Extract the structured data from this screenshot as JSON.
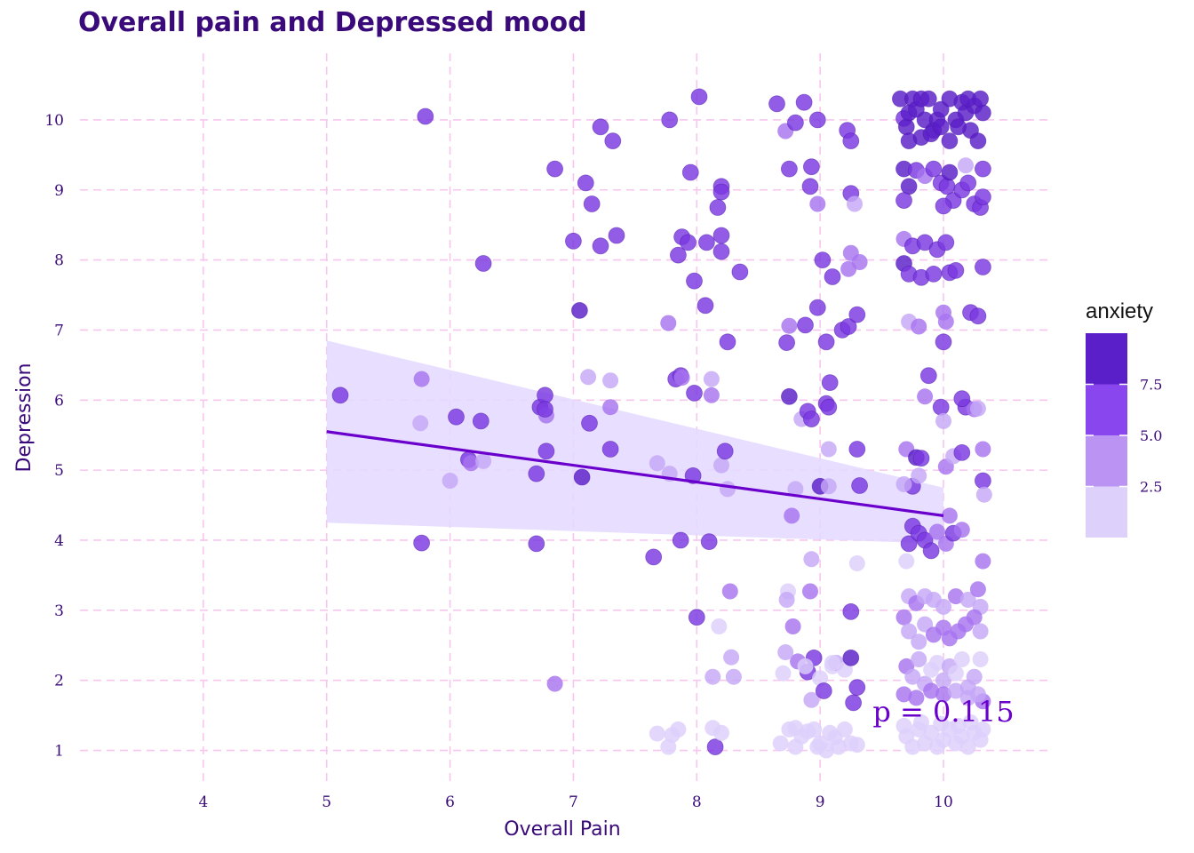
{
  "chart_data": {
    "type": "scatter",
    "title": "Overall pain and Depressed mood",
    "xlabel": "Overall Pain",
    "ylabel": "Depression",
    "xlim": [
      3.0,
      10.85
    ],
    "ylim": [
      0.55,
      10.95
    ],
    "xticks": [
      4,
      5,
      6,
      7,
      8,
      9,
      10
    ],
    "yticks": [
      1,
      2,
      3,
      4,
      5,
      6,
      7,
      8,
      9,
      10
    ],
    "grid": true,
    "annotation": "p = 0.115",
    "legend": {
      "title": "anxiety",
      "position": "right",
      "ticks": [
        "7.5",
        "5.0",
        "2.5"
      ],
      "colors": [
        "#5a1fc8",
        "#8a46ee",
        "#ba93f3",
        "#ddd0fb"
      ]
    },
    "trend": {
      "x": [
        5,
        10
      ],
      "y": [
        5.55,
        4.35
      ],
      "ci_lower": [
        4.25,
        3.95
      ],
      "ci_upper": [
        6.85,
        4.75
      ],
      "color": "#6a00cc",
      "band_color": "#e4d8ff"
    },
    "points": [
      [
        5.11,
        6.07,
        7
      ],
      [
        5.8,
        10.05,
        7
      ],
      [
        5.77,
        6.3,
        5
      ],
      [
        5.76,
        5.67,
        4
      ],
      [
        5.77,
        3.96,
        6
      ],
      [
        6.05,
        5.76,
        7
      ],
      [
        6.15,
        5.15,
        6
      ],
      [
        6.17,
        5.1,
        5
      ],
      [
        6.0,
        4.85,
        4
      ],
      [
        6.25,
        5.7,
        6
      ],
      [
        6.27,
        7.95,
        7
      ],
      [
        6.27,
        5.13,
        4
      ],
      [
        6.73,
        5.9,
        6
      ],
      [
        6.77,
        6.07,
        6
      ],
      [
        6.78,
        5.78,
        5
      ],
      [
        6.77,
        5.87,
        6
      ],
      [
        6.78,
        5.27,
        6
      ],
      [
        6.7,
        4.95,
        6
      ],
      [
        6.7,
        3.95,
        6
      ],
      [
        6.85,
        9.3,
        7
      ],
      [
        6.85,
        1.95,
        5
      ],
      [
        7.0,
        8.27,
        7
      ],
      [
        7.05,
        7.28,
        8
      ],
      [
        7.1,
        9.1,
        7
      ],
      [
        7.15,
        8.8,
        7
      ],
      [
        7.22,
        8.2,
        7
      ],
      [
        7.22,
        9.9,
        7
      ],
      [
        7.32,
        9.7,
        7
      ],
      [
        7.35,
        8.35,
        7
      ],
      [
        7.07,
        4.9,
        8
      ],
      [
        7.12,
        6.33,
        4
      ],
      [
        7.13,
        5.67,
        6
      ],
      [
        7.3,
        6.28,
        4
      ],
      [
        7.3,
        5.9,
        5
      ],
      [
        7.3,
        5.3,
        6
      ],
      [
        7.65,
        3.76,
        6
      ],
      [
        7.68,
        5.1,
        4
      ],
      [
        7.68,
        1.24,
        3
      ],
      [
        7.78,
        10.0,
        7
      ],
      [
        7.77,
        7.1,
        5
      ],
      [
        7.77,
        1.05,
        3
      ],
      [
        7.8,
        1.22,
        3
      ],
      [
        7.83,
        6.3,
        6
      ],
      [
        7.87,
        6.35,
        6
      ],
      [
        7.85,
        8.07,
        7
      ],
      [
        7.87,
        4.0,
        6
      ],
      [
        7.88,
        8.33,
        7
      ],
      [
        7.85,
        1.3,
        3
      ],
      [
        7.88,
        6.32,
        5
      ],
      [
        7.78,
        4.95,
        4
      ],
      [
        7.95,
        9.25,
        7
      ],
      [
        7.93,
        8.25,
        7
      ],
      [
        7.97,
        4.92,
        6
      ],
      [
        7.98,
        7.7,
        7
      ],
      [
        7.98,
        6.1,
        7
      ],
      [
        8.02,
        10.33,
        7
      ],
      [
        8.0,
        2.9,
        7
      ],
      [
        8.07,
        7.35,
        7
      ],
      [
        8.08,
        8.25,
        7
      ],
      [
        8.1,
        3.98,
        7
      ],
      [
        8.12,
        6.3,
        4
      ],
      [
        8.12,
        6.07,
        5
      ],
      [
        8.13,
        2.05,
        4
      ],
      [
        8.15,
        1.05,
        6
      ],
      [
        8.13,
        1.32,
        3
      ],
      [
        8.18,
        2.77,
        3
      ],
      [
        8.2,
        8.35,
        7
      ],
      [
        8.2,
        8.12,
        7
      ],
      [
        8.2,
        9.05,
        7
      ],
      [
        8.2,
        8.97,
        7
      ],
      [
        8.17,
        8.75,
        7
      ],
      [
        8.2,
        5.07,
        4
      ],
      [
        8.23,
        5.27,
        6
      ],
      [
        8.25,
        6.83,
        7
      ],
      [
        8.25,
        4.73,
        4
      ],
      [
        8.27,
        3.27,
        5
      ],
      [
        8.28,
        2.33,
        4
      ],
      [
        8.3,
        2.05,
        4
      ],
      [
        8.2,
        1.25,
        3
      ],
      [
        8.35,
        7.83,
        7
      ],
      [
        8.65,
        10.23,
        7
      ],
      [
        8.68,
        1.1,
        3
      ],
      [
        8.72,
        9.84,
        5
      ],
      [
        8.75,
        9.3,
        7
      ],
      [
        8.73,
        6.82,
        7
      ],
      [
        8.75,
        6.05,
        8
      ],
      [
        8.75,
        7.06,
        5
      ],
      [
        8.77,
        4.35,
        5
      ],
      [
        8.8,
        9.96,
        6
      ],
      [
        8.8,
        4.73,
        4
      ],
      [
        8.82,
        2.27,
        5
      ],
      [
        8.8,
        1.32,
        3
      ],
      [
        8.85,
        5.73,
        4
      ],
      [
        8.87,
        10.25,
        7
      ],
      [
        8.88,
        7.07,
        6
      ],
      [
        8.9,
        5.84,
        6
      ],
      [
        8.9,
        2.12,
        6
      ],
      [
        8.92,
        9.05,
        6
      ],
      [
        8.93,
        9.33,
        7
      ],
      [
        8.93,
        5.73,
        6
      ],
      [
        8.92,
        3.27,
        5
      ],
      [
        8.93,
        3.73,
        4
      ],
      [
        8.93,
        1.72,
        4
      ],
      [
        8.9,
        1.27,
        3
      ],
      [
        8.95,
        2.32,
        7
      ],
      [
        8.98,
        10.0,
        6
      ],
      [
        8.98,
        8.8,
        5
      ],
      [
        8.98,
        7.32,
        6
      ],
      [
        9.0,
        4.77,
        8
      ],
      [
        8.98,
        1.05,
        3
      ],
      [
        9.0,
        2.03,
        3
      ],
      [
        9.02,
        8.0,
        6
      ],
      [
        9.03,
        1.85,
        7
      ],
      [
        9.05,
        6.83,
        7
      ],
      [
        9.05,
        5.95,
        7
      ],
      [
        9.07,
        5.9,
        7
      ],
      [
        9.07,
        5.3,
        4
      ],
      [
        9.07,
        4.77,
        4
      ],
      [
        9.08,
        6.25,
        6
      ],
      [
        9.1,
        7.76,
        7
      ],
      [
        9.1,
        2.2,
        3
      ],
      [
        9.12,
        1.18,
        3
      ],
      [
        9.13,
        2.25,
        4
      ],
      [
        9.18,
        7.0,
        6
      ],
      [
        9.2,
        2.15,
        3
      ],
      [
        9.22,
        9.85,
        7
      ],
      [
        9.23,
        7.05,
        6
      ],
      [
        9.25,
        9.7,
        7
      ],
      [
        9.25,
        8.95,
        6
      ],
      [
        9.25,
        8.1,
        5
      ],
      [
        9.23,
        7.87,
        5
      ],
      [
        9.25,
        2.98,
        7
      ],
      [
        9.25,
        2.32,
        8
      ],
      [
        9.27,
        1.68,
        6
      ],
      [
        9.28,
        8.8,
        4
      ],
      [
        9.3,
        5.3,
        6
      ],
      [
        9.3,
        7.22,
        7
      ],
      [
        9.3,
        3.67,
        3
      ],
      [
        9.32,
        7.97,
        5
      ],
      [
        9.32,
        4.78,
        6
      ],
      [
        9.3,
        1.9,
        7
      ],
      [
        9.3,
        1.08,
        3
      ],
      [
        9.65,
        10.3,
        8
      ],
      [
        9.68,
        10.02,
        7
      ],
      [
        9.7,
        9.9,
        8
      ],
      [
        9.72,
        10.1,
        8
      ],
      [
        9.75,
        10.3,
        8
      ],
      [
        9.78,
        10.15,
        8
      ],
      [
        9.82,
        10.3,
        8
      ],
      [
        9.85,
        10.0,
        8
      ],
      [
        9.88,
        10.3,
        8
      ],
      [
        9.92,
        9.85,
        8
      ],
      [
        9.95,
        10.0,
        8
      ],
      [
        9.98,
        10.15,
        8
      ],
      [
        9.72,
        9.7,
        8
      ],
      [
        9.82,
        9.75,
        8
      ],
      [
        9.9,
        9.8,
        8
      ],
      [
        9.98,
        9.9,
        8
      ],
      [
        10.05,
        10.3,
        8
      ],
      [
        10.1,
        10.0,
        8
      ],
      [
        10.15,
        10.25,
        8
      ],
      [
        10.18,
        10.1,
        8
      ],
      [
        10.22,
        9.85,
        8
      ],
      [
        10.25,
        10.2,
        8
      ],
      [
        10.28,
        9.7,
        8
      ],
      [
        10.32,
        10.1,
        8
      ],
      [
        10.05,
        9.7,
        8
      ],
      [
        10.12,
        9.9,
        8
      ],
      [
        10.2,
        10.3,
        8
      ],
      [
        10.3,
        10.3,
        8
      ],
      [
        9.68,
        9.3,
        8
      ],
      [
        9.72,
        9.05,
        8
      ],
      [
        9.78,
        9.28,
        7
      ],
      [
        9.85,
        9.2,
        5
      ],
      [
        9.92,
        9.3,
        7
      ],
      [
        9.98,
        9.1,
        7
      ],
      [
        10.03,
        9.05,
        7
      ],
      [
        10.05,
        9.25,
        8
      ],
      [
        10.08,
        8.85,
        7
      ],
      [
        10.15,
        9.0,
        7
      ],
      [
        10.2,
        9.1,
        7
      ],
      [
        10.25,
        8.8,
        7
      ],
      [
        10.3,
        8.75,
        7
      ],
      [
        10.32,
        8.9,
        7
      ],
      [
        10.32,
        9.3,
        7
      ],
      [
        10.18,
        9.35,
        4
      ],
      [
        9.68,
        8.85,
        7
      ],
      [
        10.0,
        8.77,
        7
      ],
      [
        9.68,
        8.3,
        5
      ],
      [
        9.75,
        8.2,
        6
      ],
      [
        9.85,
        8.25,
        7
      ],
      [
        9.95,
        8.15,
        7
      ],
      [
        10.02,
        8.25,
        7
      ],
      [
        9.68,
        7.95,
        8
      ],
      [
        9.72,
        7.8,
        6
      ],
      [
        9.82,
        7.75,
        6
      ],
      [
        9.92,
        7.8,
        6
      ],
      [
        10.05,
        7.82,
        7
      ],
      [
        10.1,
        7.85,
        7
      ],
      [
        10.32,
        7.9,
        6
      ],
      [
        10.0,
        7.25,
        5
      ],
      [
        10.02,
        7.12,
        5
      ],
      [
        9.72,
        7.12,
        4
      ],
      [
        9.8,
        7.05,
        5
      ],
      [
        10.22,
        7.25,
        7
      ],
      [
        10.28,
        7.2,
        6
      ],
      [
        10.0,
        6.83,
        6
      ],
      [
        9.7,
        5.3,
        5
      ],
      [
        9.78,
        5.18,
        8
      ],
      [
        9.75,
        4.77,
        6
      ],
      [
        9.68,
        4.8,
        4
      ],
      [
        9.8,
        4.92,
        4
      ],
      [
        9.82,
        5.17,
        6
      ],
      [
        9.88,
        6.35,
        6
      ],
      [
        9.85,
        6.05,
        5
      ],
      [
        9.98,
        5.9,
        6
      ],
      [
        10.0,
        5.7,
        4
      ],
      [
        10.02,
        5.05,
        5
      ],
      [
        10.08,
        5.2,
        4
      ],
      [
        10.15,
        5.25,
        7
      ],
      [
        10.18,
        5.9,
        7
      ],
      [
        10.15,
        6.02,
        7
      ],
      [
        10.25,
        5.87,
        5
      ],
      [
        10.28,
        5.88,
        4
      ],
      [
        10.32,
        5.3,
        5
      ],
      [
        10.32,
        4.85,
        6
      ],
      [
        10.33,
        4.65,
        4
      ],
      [
        9.72,
        3.95,
        7
      ],
      [
        9.75,
        4.2,
        6
      ],
      [
        9.8,
        4.1,
        6
      ],
      [
        9.85,
        4.0,
        6
      ],
      [
        9.9,
        3.85,
        6
      ],
      [
        9.95,
        4.12,
        5
      ],
      [
        10.02,
        3.95,
        5
      ],
      [
        10.08,
        4.1,
        7
      ],
      [
        10.15,
        4.15,
        5
      ],
      [
        10.05,
        4.35,
        5
      ],
      [
        9.7,
        3.7,
        3
      ],
      [
        9.72,
        3.2,
        4
      ],
      [
        9.78,
        3.1,
        5
      ],
      [
        9.85,
        3.2,
        4
      ],
      [
        9.92,
        3.15,
        4
      ],
      [
        10.0,
        3.05,
        4
      ],
      [
        10.1,
        3.2,
        5
      ],
      [
        10.2,
        3.15,
        4
      ],
      [
        10.28,
        3.3,
        5
      ],
      [
        10.3,
        3.05,
        4
      ],
      [
        10.32,
        3.7,
        5
      ],
      [
        9.68,
        2.9,
        5
      ],
      [
        9.72,
        2.7,
        4
      ],
      [
        9.8,
        2.55,
        4
      ],
      [
        9.85,
        2.8,
        4
      ],
      [
        9.92,
        2.65,
        5
      ],
      [
        10.0,
        2.75,
        5
      ],
      [
        10.05,
        2.6,
        5
      ],
      [
        10.12,
        2.7,
        5
      ],
      [
        10.18,
        2.8,
        5
      ],
      [
        10.25,
        2.9,
        5
      ],
      [
        10.3,
        2.7,
        4
      ],
      [
        9.7,
        2.2,
        5
      ],
      [
        9.75,
        2.05,
        4
      ],
      [
        9.8,
        2.3,
        4
      ],
      [
        9.85,
        1.95,
        4
      ],
      [
        9.9,
        2.15,
        3
      ],
      [
        9.95,
        2.25,
        3
      ],
      [
        10.0,
        2.0,
        4
      ],
      [
        10.05,
        2.2,
        4
      ],
      [
        10.1,
        2.1,
        3
      ],
      [
        10.15,
        2.3,
        3
      ],
      [
        10.2,
        1.9,
        4
      ],
      [
        10.25,
        2.05,
        4
      ],
      [
        10.3,
        2.3,
        3
      ],
      [
        10.32,
        1.7,
        5
      ],
      [
        9.68,
        1.8,
        5
      ],
      [
        9.78,
        1.75,
        5
      ],
      [
        9.9,
        1.85,
        5
      ],
      [
        10.0,
        1.8,
        5
      ],
      [
        10.1,
        1.85,
        4
      ],
      [
        10.2,
        1.75,
        4
      ],
      [
        10.28,
        1.8,
        4
      ],
      [
        9.7,
        1.2,
        3
      ],
      [
        9.75,
        1.05,
        3
      ],
      [
        9.8,
        1.3,
        3
      ],
      [
        9.85,
        1.1,
        3
      ],
      [
        9.9,
        1.25,
        3
      ],
      [
        9.95,
        1.05,
        3
      ],
      [
        10.0,
        1.15,
        3
      ],
      [
        10.05,
        1.3,
        3
      ],
      [
        10.1,
        1.1,
        3
      ],
      [
        10.15,
        1.2,
        3
      ],
      [
        10.2,
        1.05,
        3
      ],
      [
        10.25,
        1.25,
        3
      ],
      [
        10.3,
        1.15,
        3
      ],
      [
        10.32,
        1.3,
        3
      ],
      [
        9.68,
        1.35,
        3
      ],
      [
        9.82,
        1.4,
        3
      ],
      [
        9.98,
        1.38,
        3
      ],
      [
        10.12,
        1.35,
        3
      ],
      [
        10.22,
        1.4,
        3
      ],
      [
        8.7,
        2.1,
        3
      ],
      [
        8.75,
        1.3,
        3
      ],
      [
        8.8,
        1.05,
        3
      ],
      [
        8.85,
        1.2,
        3
      ],
      [
        8.88,
        2.2,
        3
      ],
      [
        8.95,
        1.3,
        3
      ],
      [
        9.0,
        1.1,
        3
      ],
      [
        9.08,
        1.25,
        3
      ],
      [
        9.15,
        1.05,
        3
      ],
      [
        9.2,
        1.3,
        3
      ],
      [
        9.25,
        1.1,
        3
      ],
      [
        9.1,
        2.25,
        3
      ],
      [
        8.72,
        2.4,
        4
      ],
      [
        8.74,
        3.27,
        3
      ],
      [
        8.73,
        3.15,
        4
      ],
      [
        8.78,
        2.77,
        5
      ],
      [
        9.05,
        1.0,
        3
      ]
    ]
  }
}
